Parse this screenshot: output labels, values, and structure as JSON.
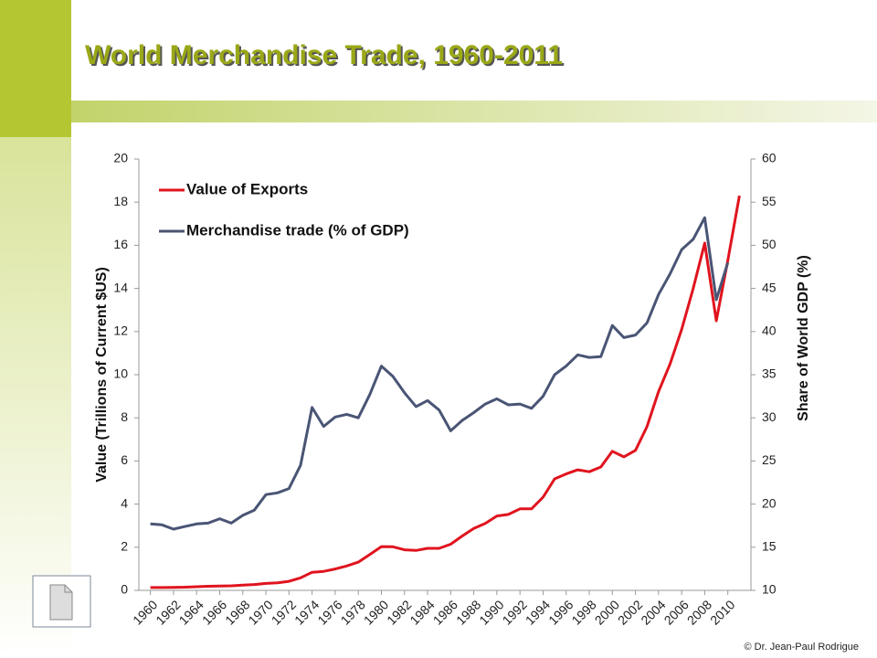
{
  "chart_data": {
    "type": "line",
    "title": "World Merchandise Trade, 1960-2011",
    "ylabel": "Value (Trillions of Current $US)",
    "y2label": "Share of World GDP (%)",
    "note": "© Dr. Jean-Paul Rodrigue",
    "x": [
      1960,
      1961,
      1962,
      1963,
      1964,
      1965,
      1966,
      1967,
      1968,
      1969,
      1970,
      1971,
      1972,
      1973,
      1974,
      1975,
      1976,
      1977,
      1978,
      1979,
      1980,
      1981,
      1982,
      1983,
      1984,
      1985,
      1986,
      1987,
      1988,
      1989,
      1990,
      1991,
      1992,
      1993,
      1994,
      1995,
      1996,
      1997,
      1998,
      1999,
      2000,
      2001,
      2002,
      2003,
      2004,
      2005,
      2006,
      2007,
      2008,
      2009,
      2010,
      2011
    ],
    "xlim": [
      1959,
      2012
    ],
    "xticks": [
      1960,
      1962,
      1964,
      1966,
      1968,
      1970,
      1972,
      1974,
      1976,
      1978,
      1980,
      1982,
      1984,
      1986,
      1988,
      1990,
      1992,
      1994,
      1996,
      1998,
      2000,
      2002,
      2004,
      2006,
      2008,
      2010
    ],
    "ylim": [
      0,
      20
    ],
    "yticks": [
      0,
      2,
      4,
      6,
      8,
      10,
      12,
      14,
      16,
      18,
      20
    ],
    "y2lim": [
      10,
      60
    ],
    "y2ticks": [
      10,
      15,
      20,
      25,
      30,
      35,
      40,
      45,
      50,
      55,
      60
    ],
    "legend": "upper left",
    "series": [
      {
        "name": "Value of Exports",
        "color": "#e0141e",
        "values": [
          0.13,
          0.13,
          0.14,
          0.15,
          0.17,
          0.19,
          0.2,
          0.21,
          0.24,
          0.27,
          0.32,
          0.35,
          0.42,
          0.58,
          0.84,
          0.88,
          0.99,
          1.13,
          1.31,
          1.66,
          2.03,
          2.02,
          1.88,
          1.85,
          1.95,
          1.95,
          2.14,
          2.52,
          2.87,
          3.1,
          3.45,
          3.52,
          3.78,
          3.78,
          4.32,
          5.17,
          5.4,
          5.59,
          5.5,
          5.72,
          6.45,
          6.19,
          6.49,
          7.59,
          9.22,
          10.5,
          12.1,
          14.0,
          16.1,
          12.5,
          15.3,
          18.3
        ]
      },
      {
        "name": "Merchandise trade (% of GDP)",
        "color": "#4a5575",
        "axis": "y2",
        "values": [
          17.7,
          17.6,
          17.1,
          17.4,
          17.7,
          17.8,
          18.3,
          17.8,
          18.7,
          19.3,
          21.1,
          21.3,
          21.8,
          24.5,
          31.2,
          29.0,
          30.1,
          30.4,
          30.0,
          32.7,
          36.0,
          34.8,
          32.9,
          31.3,
          32.0,
          30.9,
          28.5,
          29.7,
          30.6,
          31.6,
          32.2,
          31.5,
          31.6,
          31.1,
          32.5,
          35.0,
          36.0,
          37.3,
          37.0,
          37.1,
          40.7,
          39.3,
          39.6,
          41.0,
          44.3,
          46.7,
          49.5,
          50.7,
          53.2,
          43.7,
          48.0,
          null
        ]
      }
    ]
  }
}
